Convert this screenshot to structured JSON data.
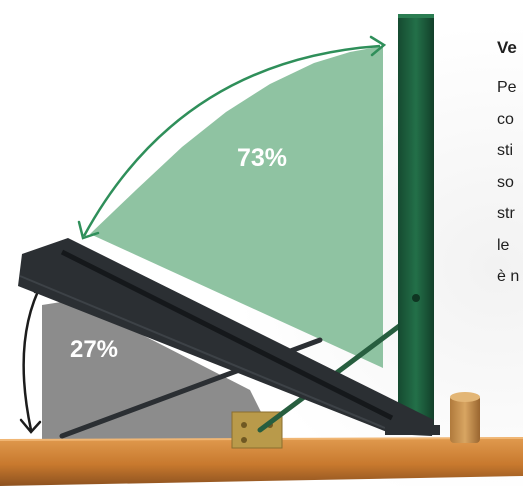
{
  "illustration": {
    "angle_upper_label": "73%",
    "angle_lower_label": "27%",
    "colors": {
      "upper_sector": "#8fc3a2",
      "upper_arrow": "#2f8f5a",
      "lower_sector": "#8c8c8c",
      "lower_arrow": "#1c1c1c",
      "upright_post": "#1d5a3c",
      "frame": "#2b2f33",
      "table": "#c8792e"
    }
  },
  "side_text": {
    "title": "Ve",
    "lines": [
      "Pe",
      "co",
      "sti",
      "so",
      "str",
      "le",
      "è n"
    ]
  }
}
